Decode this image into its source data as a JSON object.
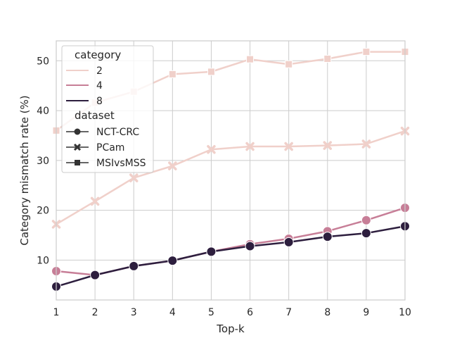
{
  "chart_data": {
    "type": "line",
    "title": "",
    "xlabel": "Top-k",
    "ylabel": "Category mismatch rate (%)",
    "xlim": [
      1,
      10
    ],
    "ylim": [
      2,
      54
    ],
    "xticks": [
      "1",
      "2",
      "3",
      "4",
      "5",
      "6",
      "7",
      "8",
      "9",
      "10"
    ],
    "yticks": [
      "10",
      "20",
      "30",
      "40",
      "50"
    ],
    "grid": true,
    "legend_placement": "top-left",
    "x": [
      1,
      2,
      3,
      4,
      5,
      6,
      7,
      8,
      9,
      10
    ],
    "series": [
      {
        "category": "2",
        "dataset": "NCT-CRC",
        "values": [
          null,
          null,
          null,
          null,
          null,
          null,
          null,
          null,
          null,
          null
        ]
      },
      {
        "category": "2",
        "dataset": "PCam",
        "values": [
          17.2,
          21.8,
          26.5,
          28.9,
          32.2,
          32.8,
          32.8,
          33.0,
          33.3,
          35.9
        ]
      },
      {
        "category": "2",
        "dataset": "MSIvsMSS",
        "values": [
          36.0,
          41.6,
          43.8,
          47.3,
          47.8,
          50.3,
          49.3,
          50.4,
          51.8,
          51.8
        ]
      },
      {
        "category": "4",
        "dataset": "NCT-CRC",
        "values": [
          7.8,
          7.0,
          8.8,
          9.9,
          11.7,
          13.2,
          14.3,
          15.8,
          18.0,
          20.5
        ]
      },
      {
        "category": "8",
        "dataset": "NCT-CRC",
        "values": [
          4.7,
          7.0,
          8.8,
          9.9,
          11.7,
          12.8,
          13.6,
          14.7,
          15.4,
          16.8
        ]
      }
    ],
    "colors": {
      "2": "#f0d0ca",
      "4": "#c77e97",
      "8": "#2d1e3e"
    },
    "legend": {
      "category_title": "category",
      "category_items": [
        "2",
        "4",
        "8"
      ],
      "dataset_title": "dataset",
      "dataset_items": [
        {
          "label": "NCT-CRC",
          "marker": "circle"
        },
        {
          "label": "PCam",
          "marker": "x"
        },
        {
          "label": "MSIvsMSS",
          "marker": "square"
        }
      ]
    }
  }
}
